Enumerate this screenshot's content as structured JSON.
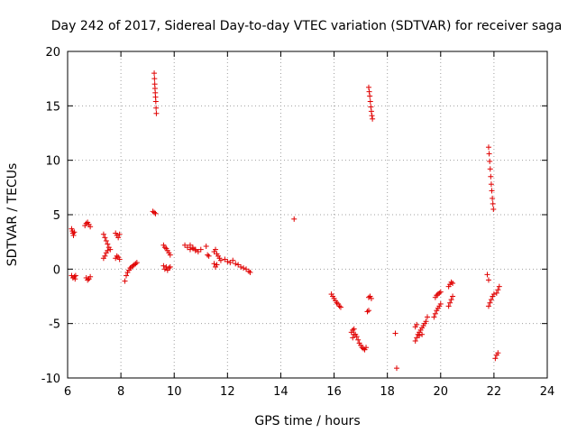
{
  "chart_data": {
    "type": "scatter",
    "title": "Day 242 of 2017, Sidereal Day-to-day VTEC variation (SDTVAR) for receiver saga",
    "xlabel": "GPS time / hours",
    "ylabel": "SDTVAR / TECUs",
    "xlim": [
      6,
      24
    ],
    "ylim": [
      -10,
      20
    ],
    "xticks": [
      "6",
      "8",
      "10",
      "12",
      "14",
      "16",
      "18",
      "20",
      "22",
      "24"
    ],
    "yticks": [
      "-10",
      "-5",
      "0",
      "5",
      "10",
      "15",
      "20"
    ],
    "grid": true,
    "marker": "+",
    "colors": {
      "series": "#e00000",
      "grid": "#a0a0a0",
      "frame": "#000000"
    },
    "series": [
      {
        "name": "SDTVAR",
        "points": [
          [
            6.15,
            3.7
          ],
          [
            6.18,
            3.5
          ],
          [
            6.2,
            3.3
          ],
          [
            6.22,
            3.1
          ],
          [
            6.25,
            3.4
          ],
          [
            6.15,
            -0.6
          ],
          [
            6.2,
            -0.8
          ],
          [
            6.25,
            -0.7
          ],
          [
            6.28,
            -0.9
          ],
          [
            6.3,
            -0.6
          ],
          [
            6.65,
            4.0
          ],
          [
            6.7,
            4.2
          ],
          [
            6.75,
            4.3
          ],
          [
            6.8,
            4.1
          ],
          [
            6.85,
            3.9
          ],
          [
            6.7,
            -0.8
          ],
          [
            6.75,
            -1.0
          ],
          [
            6.8,
            -0.9
          ],
          [
            6.85,
            -0.7
          ],
          [
            7.35,
            3.2
          ],
          [
            7.4,
            2.9
          ],
          [
            7.45,
            2.6
          ],
          [
            7.5,
            2.3
          ],
          [
            7.55,
            2.0
          ],
          [
            7.6,
            1.8
          ],
          [
            7.35,
            1.0
          ],
          [
            7.4,
            1.2
          ],
          [
            7.45,
            1.5
          ],
          [
            7.5,
            1.7
          ],
          [
            7.8,
            3.3
          ],
          [
            7.85,
            3.1
          ],
          [
            7.9,
            2.9
          ],
          [
            7.95,
            3.2
          ],
          [
            7.8,
            1.0
          ],
          [
            7.85,
            1.2
          ],
          [
            7.9,
            1.1
          ],
          [
            7.95,
            0.9
          ],
          [
            8.15,
            -1.1
          ],
          [
            8.2,
            -0.6
          ],
          [
            8.25,
            -0.3
          ],
          [
            8.3,
            -0.1
          ],
          [
            8.35,
            0.1
          ],
          [
            8.4,
            0.2
          ],
          [
            8.45,
            0.3
          ],
          [
            8.5,
            0.4
          ],
          [
            8.55,
            0.5
          ],
          [
            8.6,
            0.6
          ],
          [
            9.25,
            18.0
          ],
          [
            9.26,
            17.5
          ],
          [
            9.27,
            17.0
          ],
          [
            9.28,
            16.6
          ],
          [
            9.29,
            16.2
          ],
          [
            9.3,
            15.8
          ],
          [
            9.31,
            15.4
          ],
          [
            9.32,
            14.8
          ],
          [
            9.33,
            14.3
          ],
          [
            9.2,
            5.3
          ],
          [
            9.25,
            5.2
          ],
          [
            9.3,
            5.1
          ],
          [
            9.6,
            2.2
          ],
          [
            9.65,
            2.0
          ],
          [
            9.7,
            1.9
          ],
          [
            9.75,
            1.7
          ],
          [
            9.8,
            1.5
          ],
          [
            9.85,
            1.3
          ],
          [
            9.6,
            0.3
          ],
          [
            9.65,
            0.0
          ],
          [
            9.7,
            0.2
          ],
          [
            9.75,
            -0.1
          ],
          [
            9.8,
            0.1
          ],
          [
            9.85,
            0.2
          ],
          [
            10.4,
            2.2
          ],
          [
            10.5,
            2.0
          ],
          [
            10.6,
            1.8
          ],
          [
            10.7,
            1.9
          ],
          [
            10.8,
            1.7
          ],
          [
            10.9,
            1.6
          ],
          [
            11.0,
            1.8
          ],
          [
            10.6,
            2.2
          ],
          [
            10.7,
            2.0
          ],
          [
            10.8,
            1.8
          ],
          [
            11.2,
            2.1
          ],
          [
            11.25,
            1.3
          ],
          [
            11.3,
            1.2
          ],
          [
            11.5,
            1.6
          ],
          [
            11.55,
            1.8
          ],
          [
            11.6,
            1.4
          ],
          [
            11.65,
            1.2
          ],
          [
            11.7,
            1.0
          ],
          [
            11.75,
            0.8
          ],
          [
            11.5,
            0.5
          ],
          [
            11.55,
            0.2
          ],
          [
            11.6,
            0.4
          ],
          [
            11.9,
            0.9
          ],
          [
            12.0,
            0.7
          ],
          [
            12.1,
            0.6
          ],
          [
            12.2,
            0.8
          ],
          [
            12.3,
            0.5
          ],
          [
            12.4,
            0.4
          ],
          [
            12.5,
            0.2
          ],
          [
            12.6,
            0.1
          ],
          [
            12.7,
            0.0
          ],
          [
            12.8,
            -0.2
          ],
          [
            12.85,
            -0.3
          ],
          [
            14.5,
            4.6
          ],
          [
            15.9,
            -2.3
          ],
          [
            15.95,
            -2.5
          ],
          [
            16.0,
            -2.7
          ],
          [
            16.05,
            -2.9
          ],
          [
            16.1,
            -3.1
          ],
          [
            16.15,
            -3.2
          ],
          [
            16.2,
            -3.4
          ],
          [
            16.25,
            -3.5
          ],
          [
            16.65,
            -5.8
          ],
          [
            16.7,
            -5.6
          ],
          [
            16.75,
            -5.5
          ],
          [
            16.8,
            -6.0
          ],
          [
            16.85,
            -6.2
          ],
          [
            16.9,
            -6.5
          ],
          [
            16.95,
            -6.8
          ],
          [
            17.0,
            -7.0
          ],
          [
            17.05,
            -7.2
          ],
          [
            17.1,
            -7.3
          ],
          [
            17.15,
            -7.4
          ],
          [
            17.2,
            -7.2
          ],
          [
            16.7,
            -6.3
          ],
          [
            16.75,
            -6.0
          ],
          [
            17.25,
            -3.9
          ],
          [
            17.3,
            -3.8
          ],
          [
            17.3,
            -2.6
          ],
          [
            17.35,
            -2.5
          ],
          [
            17.4,
            -2.7
          ],
          [
            17.3,
            16.7
          ],
          [
            17.32,
            16.3
          ],
          [
            17.34,
            15.9
          ],
          [
            17.36,
            15.4
          ],
          [
            17.38,
            14.9
          ],
          [
            17.4,
            14.5
          ],
          [
            17.42,
            14.1
          ],
          [
            17.44,
            13.8
          ],
          [
            18.3,
            -5.9
          ],
          [
            18.35,
            -9.1
          ],
          [
            19.05,
            -6.6
          ],
          [
            19.1,
            -6.3
          ],
          [
            19.15,
            -6.0
          ],
          [
            19.2,
            -5.8
          ],
          [
            19.25,
            -5.6
          ],
          [
            19.3,
            -5.4
          ],
          [
            19.35,
            -5.2
          ],
          [
            19.4,
            -5.0
          ],
          [
            19.45,
            -4.8
          ],
          [
            19.5,
            -4.4
          ],
          [
            19.05,
            -5.3
          ],
          [
            19.1,
            -5.1
          ],
          [
            19.2,
            -6.1
          ],
          [
            19.3,
            -6.0
          ],
          [
            19.75,
            -4.4
          ],
          [
            19.8,
            -4.1
          ],
          [
            19.85,
            -3.8
          ],
          [
            19.9,
            -3.6
          ],
          [
            19.95,
            -3.4
          ],
          [
            20.0,
            -3.2
          ],
          [
            19.8,
            -2.6
          ],
          [
            19.85,
            -2.4
          ],
          [
            19.9,
            -2.3
          ],
          [
            19.95,
            -2.2
          ],
          [
            20.0,
            -2.1
          ],
          [
            20.3,
            -3.4
          ],
          [
            20.35,
            -3.1
          ],
          [
            20.4,
            -2.8
          ],
          [
            20.45,
            -2.5
          ],
          [
            20.3,
            -1.6
          ],
          [
            20.35,
            -1.4
          ],
          [
            20.4,
            -1.2
          ],
          [
            20.45,
            -1.3
          ],
          [
            21.75,
            -0.5
          ],
          [
            21.8,
            -1.0
          ],
          [
            21.8,
            -3.4
          ],
          [
            21.85,
            -3.1
          ],
          [
            21.9,
            -2.8
          ],
          [
            21.95,
            -2.5
          ],
          [
            22.0,
            -2.3
          ],
          [
            21.8,
            11.2
          ],
          [
            21.82,
            10.6
          ],
          [
            21.84,
            9.9
          ],
          [
            21.86,
            9.2
          ],
          [
            21.88,
            8.5
          ],
          [
            21.9,
            7.8
          ],
          [
            21.92,
            7.2
          ],
          [
            21.94,
            6.5
          ],
          [
            21.96,
            6.0
          ],
          [
            21.98,
            5.5
          ],
          [
            22.05,
            -8.2
          ],
          [
            22.1,
            -7.9
          ],
          [
            22.15,
            -7.7
          ],
          [
            22.1,
            -2.2
          ],
          [
            22.15,
            -1.9
          ],
          [
            22.2,
            -1.6
          ]
        ]
      }
    ]
  }
}
